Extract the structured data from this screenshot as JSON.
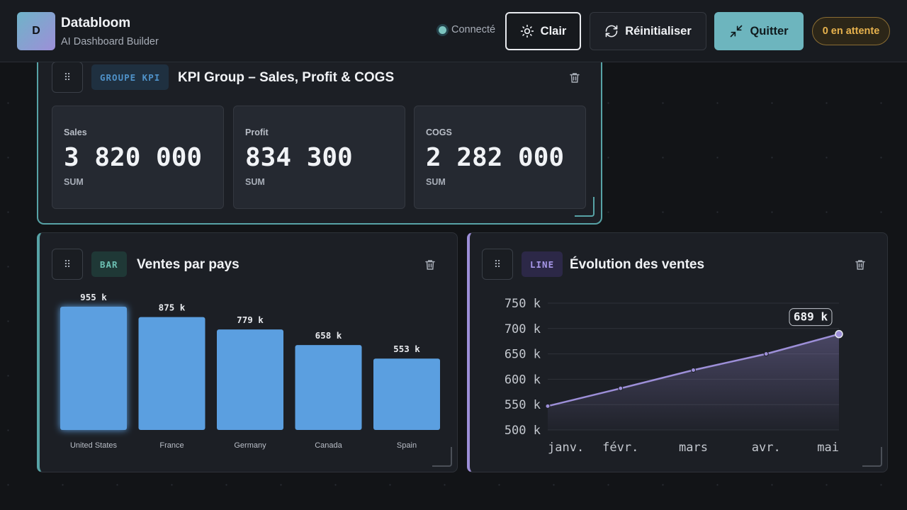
{
  "header": {
    "logo_letter": "D",
    "brand_name": "Databloom",
    "brand_subtitle": "AI Dashboard Builder",
    "status_label": "Connecté",
    "light_button": "Clair",
    "reset_button": "Réinitialiser",
    "quit_button": "Quitter",
    "pending_badge": "0 en attente"
  },
  "kpi_card": {
    "tag": "GROUPE KPI",
    "title": "KPI Group – Sales, Profit & COGS",
    "kpis": [
      {
        "label": "Sales",
        "value": "3 820 000",
        "agg": "SUM"
      },
      {
        "label": "Profit",
        "value": "834 300",
        "agg": "SUM"
      },
      {
        "label": "COGS",
        "value": "2 282 000",
        "agg": "SUM"
      }
    ]
  },
  "bar_card": {
    "tag": "BAR",
    "title": "Ventes par pays"
  },
  "line_card": {
    "tag": "LINE",
    "title": "Évolution des ventes"
  },
  "colors": {
    "accent_teal": "#57a3a6",
    "accent_purple": "#9d8fd8",
    "bar_fill": "#5b9fe0",
    "pending": "#e7b24e"
  },
  "chart_data": [
    {
      "type": "bar",
      "categories": [
        "United States",
        "France",
        "Germany",
        "Canada",
        "Spain"
      ],
      "values": [
        955,
        875,
        779,
        658,
        553
      ],
      "value_labels": [
        "955 k",
        "875 k",
        "779 k",
        "658 k",
        "553 k"
      ],
      "title": "Ventes par pays",
      "ylim": [
        0,
        955
      ]
    },
    {
      "type": "area",
      "x": [
        "janv.",
        "févr.",
        "mars",
        "avr.",
        "mai"
      ],
      "values": [
        547,
        582,
        618,
        650,
        689
      ],
      "yticks": [
        "500 k",
        "550 k",
        "600 k",
        "650 k",
        "700 k",
        "750 k"
      ],
      "ylim": [
        500,
        750
      ],
      "last_value_label": "689 k",
      "title": "Évolution des ventes",
      "grid": true
    }
  ]
}
